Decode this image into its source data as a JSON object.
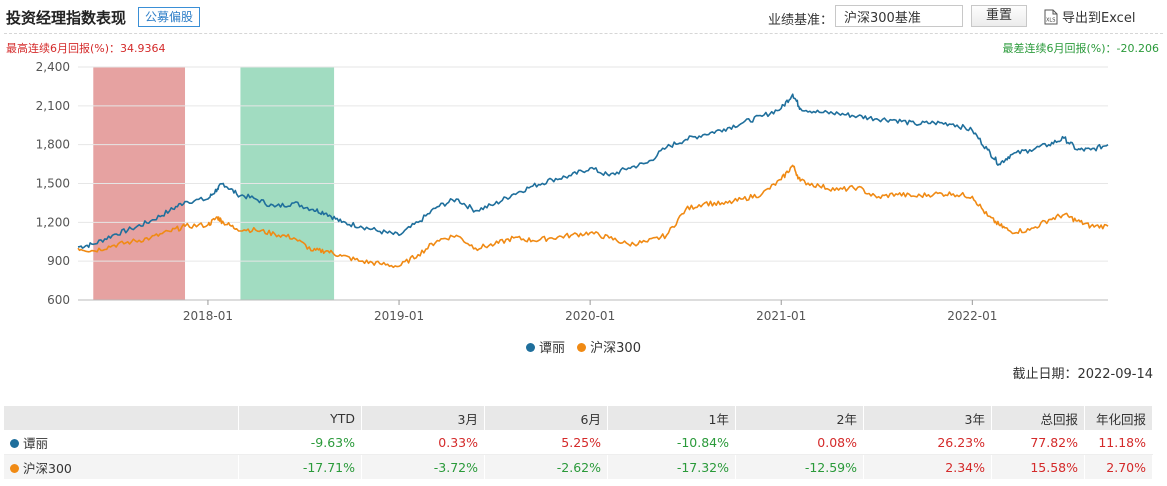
{
  "header": {
    "title": "投资经理指数表现",
    "tag": "公募偏股",
    "benchmark_label": "业绩基准：",
    "benchmark_value": "沪深300基准",
    "reset_label": "重置",
    "export_label": "导出到Excel",
    "export_icon": "xls-file-icon"
  },
  "stats": {
    "max_6m_label": "最高连续6月回报(%)：34.9364",
    "min_6m_label": "最差连续6月回报(%)：-20.206"
  },
  "colors": {
    "manager": "#1f6f9c",
    "benchmark": "#f08a14",
    "max_band": "#d9706f",
    "min_band": "#6fcaa0",
    "positive": "#d42a2a",
    "negative": "#2a9a3a"
  },
  "chart_data": {
    "type": "line",
    "y_ticks": [
      "2,400",
      "2,100",
      "1,800",
      "1,500",
      "1,200",
      "900",
      "600"
    ],
    "ylim": [
      600,
      2400
    ],
    "x_ticks": [
      "2018-01",
      "2019-01",
      "2020-01",
      "2021-01",
      "2022-01"
    ],
    "x_tick_values": [
      2018.0,
      2019.0,
      2020.0,
      2021.0,
      2022.0
    ],
    "xlim": [
      2017.32,
      2022.71
    ],
    "highlight_bands": [
      {
        "kind": "max_6m",
        "x": [
          2017.4,
          2017.88
        ]
      },
      {
        "kind": "min_6m",
        "x": [
          2018.17,
          2018.66
        ]
      }
    ],
    "series": [
      {
        "name": "谭丽",
        "points": [
          [
            2017.32,
            1010
          ],
          [
            2017.4,
            1030
          ],
          [
            2017.5,
            1100
          ],
          [
            2017.6,
            1150
          ],
          [
            2017.7,
            1210
          ],
          [
            2017.8,
            1290
          ],
          [
            2017.88,
            1360
          ],
          [
            2018.0,
            1380
          ],
          [
            2018.05,
            1460
          ],
          [
            2018.08,
            1500
          ],
          [
            2018.15,
            1420
          ],
          [
            2018.25,
            1380
          ],
          [
            2018.35,
            1320
          ],
          [
            2018.45,
            1350
          ],
          [
            2018.55,
            1300
          ],
          [
            2018.62,
            1270
          ],
          [
            2018.7,
            1200
          ],
          [
            2018.8,
            1170
          ],
          [
            2018.9,
            1130
          ],
          [
            2019.0,
            1100
          ],
          [
            2019.1,
            1200
          ],
          [
            2019.2,
            1320
          ],
          [
            2019.3,
            1380
          ],
          [
            2019.4,
            1290
          ],
          [
            2019.5,
            1340
          ],
          [
            2019.6,
            1420
          ],
          [
            2019.7,
            1480
          ],
          [
            2019.8,
            1530
          ],
          [
            2019.9,
            1560
          ],
          [
            2020.0,
            1620
          ],
          [
            2020.1,
            1560
          ],
          [
            2020.2,
            1620
          ],
          [
            2020.3,
            1660
          ],
          [
            2020.4,
            1780
          ],
          [
            2020.5,
            1840
          ],
          [
            2020.6,
            1880
          ],
          [
            2020.7,
            1920
          ],
          [
            2020.8,
            1970
          ],
          [
            2020.9,
            2020
          ],
          [
            2021.0,
            2080
          ],
          [
            2021.06,
            2190
          ],
          [
            2021.1,
            2080
          ],
          [
            2021.2,
            2050
          ],
          [
            2021.3,
            2040
          ],
          [
            2021.4,
            2020
          ],
          [
            2021.5,
            2000
          ],
          [
            2021.6,
            1990
          ],
          [
            2021.7,
            1960
          ],
          [
            2021.8,
            1970
          ],
          [
            2021.9,
            1960
          ],
          [
            2022.0,
            1910
          ],
          [
            2022.08,
            1760
          ],
          [
            2022.14,
            1650
          ],
          [
            2022.2,
            1720
          ],
          [
            2022.3,
            1760
          ],
          [
            2022.4,
            1800
          ],
          [
            2022.48,
            1850
          ],
          [
            2022.55,
            1760
          ],
          [
            2022.62,
            1760
          ],
          [
            2022.71,
            1800
          ]
        ]
      },
      {
        "name": "沪深300",
        "points": [
          [
            2017.32,
            1000
          ],
          [
            2017.4,
            980
          ],
          [
            2017.5,
            1020
          ],
          [
            2017.6,
            1050
          ],
          [
            2017.7,
            1080
          ],
          [
            2017.8,
            1130
          ],
          [
            2017.88,
            1170
          ],
          [
            2018.0,
            1180
          ],
          [
            2018.05,
            1240
          ],
          [
            2018.08,
            1200
          ],
          [
            2018.15,
            1150
          ],
          [
            2018.25,
            1140
          ],
          [
            2018.35,
            1110
          ],
          [
            2018.45,
            1080
          ],
          [
            2018.55,
            980
          ],
          [
            2018.62,
            980
          ],
          [
            2018.7,
            940
          ],
          [
            2018.8,
            900
          ],
          [
            2018.9,
            880
          ],
          [
            2019.0,
            860
          ],
          [
            2019.1,
            950
          ],
          [
            2019.2,
            1060
          ],
          [
            2019.3,
            1100
          ],
          [
            2019.4,
            1000
          ],
          [
            2019.5,
            1030
          ],
          [
            2019.6,
            1080
          ],
          [
            2019.7,
            1060
          ],
          [
            2019.8,
            1080
          ],
          [
            2019.9,
            1100
          ],
          [
            2020.0,
            1120
          ],
          [
            2020.1,
            1080
          ],
          [
            2020.2,
            1030
          ],
          [
            2020.3,
            1050
          ],
          [
            2020.4,
            1100
          ],
          [
            2020.5,
            1300
          ],
          [
            2020.6,
            1350
          ],
          [
            2020.7,
            1340
          ],
          [
            2020.8,
            1380
          ],
          [
            2020.9,
            1420
          ],
          [
            2021.0,
            1530
          ],
          [
            2021.06,
            1640
          ],
          [
            2021.1,
            1520
          ],
          [
            2021.2,
            1480
          ],
          [
            2021.3,
            1450
          ],
          [
            2021.4,
            1470
          ],
          [
            2021.5,
            1390
          ],
          [
            2021.6,
            1420
          ],
          [
            2021.7,
            1400
          ],
          [
            2021.8,
            1420
          ],
          [
            2021.9,
            1420
          ],
          [
            2022.0,
            1400
          ],
          [
            2022.08,
            1250
          ],
          [
            2022.14,
            1180
          ],
          [
            2022.2,
            1130
          ],
          [
            2022.3,
            1140
          ],
          [
            2022.4,
            1220
          ],
          [
            2022.48,
            1260
          ],
          [
            2022.55,
            1210
          ],
          [
            2022.62,
            1170
          ],
          [
            2022.71,
            1170
          ]
        ]
      }
    ]
  },
  "legend": [
    {
      "label": "谭丽"
    },
    {
      "label": "沪深300"
    }
  ],
  "as_of": "截止日期：2022-09-14",
  "table": {
    "columns": [
      "",
      "YTD",
      "3月",
      "6月",
      "1年",
      "2年",
      "3年",
      "总回报",
      "年化回报"
    ],
    "rows": [
      {
        "name": "谭丽",
        "values": [
          "-9.63%",
          "0.33%",
          "5.25%",
          "-10.84%",
          "0.08%",
          "26.23%",
          "77.82%",
          "11.18%"
        ]
      },
      {
        "name": "沪深300",
        "values": [
          "-17.71%",
          "-3.72%",
          "-2.62%",
          "-17.32%",
          "-12.59%",
          "2.34%",
          "15.58%",
          "2.70%"
        ]
      }
    ]
  }
}
